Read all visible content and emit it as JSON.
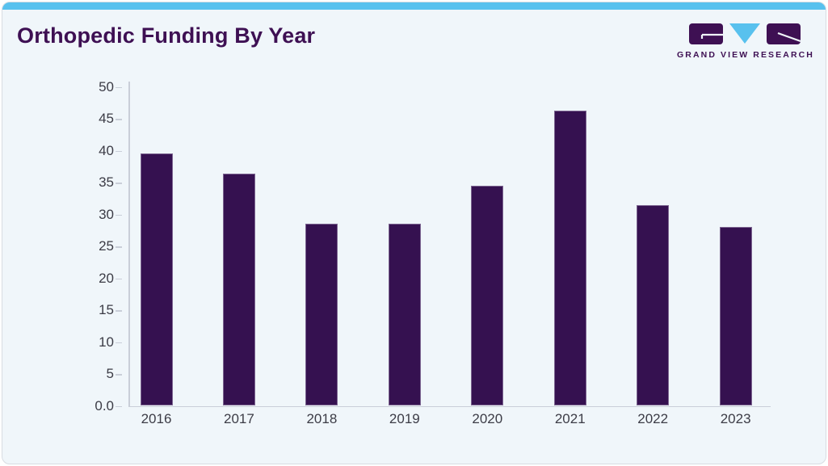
{
  "page": {
    "title": "Orthopedic Funding By Year"
  },
  "logo": {
    "name": "Grand View Research",
    "text": "GRAND VIEW RESEARCH"
  },
  "colors": {
    "accent_top_bar": "#58c1ee",
    "bar_fill": "#351150",
    "bar_border": "#7d6691",
    "title_text": "#3e1053",
    "card_background": "#f0f6fa",
    "axis": "#c9ced8",
    "tick_label_text": "#3c3c46",
    "logo_blue": "#58c1ee",
    "logo_purple": "#3e1053"
  },
  "chart_data": {
    "type": "bar",
    "title": "Orthopedic Funding By Year",
    "categories": [
      "2016",
      "2017",
      "2018",
      "2019",
      "2020",
      "2021",
      "2022",
      "2023"
    ],
    "values": [
      39.5,
      36.4,
      28.5,
      28.5,
      34.5,
      46.3,
      31.4,
      28.0
    ],
    "xlabel": "",
    "ylabel": "",
    "ylim": [
      0,
      50
    ],
    "ytick_step": 5,
    "ytick_labels": [
      "0.0",
      "5",
      "10",
      "15",
      "20",
      "25",
      "30",
      "35",
      "40",
      "45",
      "50"
    ],
    "grid": false,
    "legend": null,
    "bar_color": "#351150"
  }
}
